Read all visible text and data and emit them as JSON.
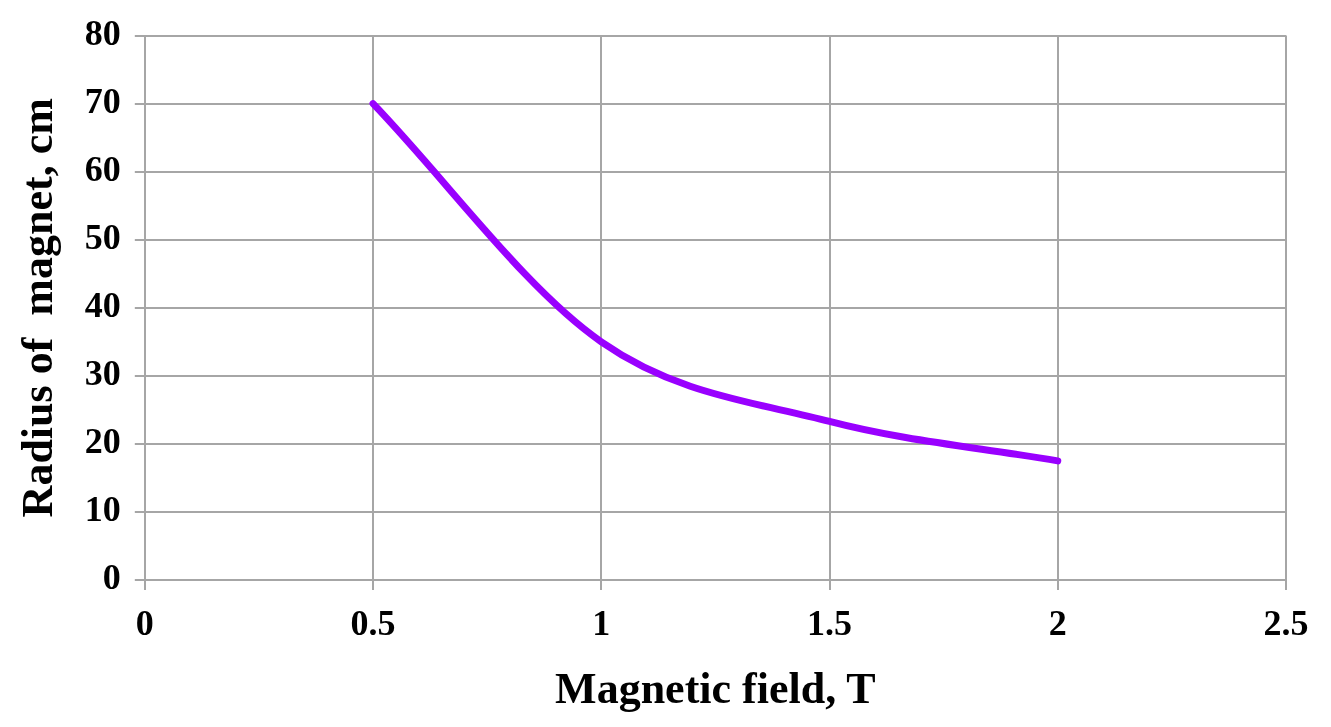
{
  "chart_data": {
    "type": "line",
    "xlabel": "Magnetic field, T",
    "ylabel": "Radius of  magnet, cm",
    "series": [
      {
        "color": "#9900ff",
        "x": [
          0.5,
          1,
          1.5,
          2
        ],
        "values": [
          70,
          35,
          23.3,
          17.5
        ]
      }
    ],
    "xlim": [
      0,
      2.5
    ],
    "xticks": [
      0,
      0.5,
      1,
      1.5,
      2,
      2.5
    ],
    "ylim": [
      0,
      80
    ],
    "yticks": [
      0,
      10,
      20,
      30,
      40,
      50,
      60,
      70,
      80
    ],
    "grid": true,
    "legend": false,
    "marker": "none",
    "line_style": "solid"
  }
}
